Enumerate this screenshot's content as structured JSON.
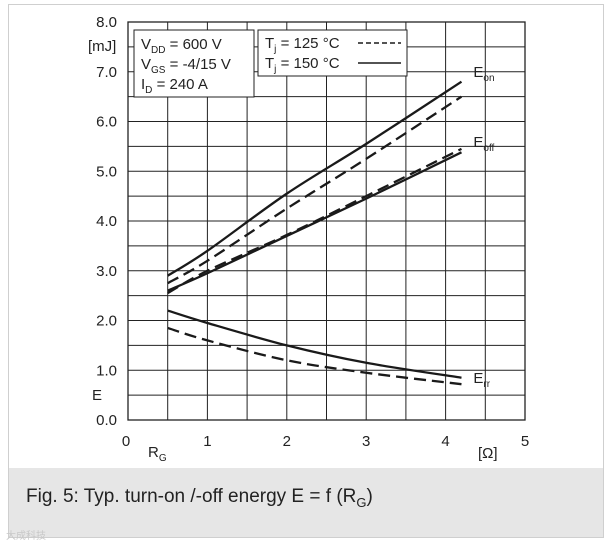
{
  "caption": {
    "text": "Fig. 5: Typ. turn-on /-off energy E = f (R",
    "sub": "G",
    "close": ")"
  },
  "watermark": "大成科技",
  "chart_data": {
    "type": "line",
    "xlim": [
      0,
      5
    ],
    "ylim": [
      0,
      8
    ],
    "x_ticks": [
      "0",
      "1",
      "2",
      "3",
      "4",
      "5"
    ],
    "y_ticks": [
      "0.0",
      "1.0",
      "2.0",
      "3.0",
      "4.0",
      "5.0",
      "6.0",
      "7.0",
      "8.0"
    ],
    "x_unit": "[Ω]",
    "y_unit": "[mJ]",
    "x_var": {
      "main": "R",
      "sub": "G"
    },
    "y_var": "E",
    "grid": true,
    "conditions": [
      {
        "main": "V",
        "sub": "DD",
        "rest": " = 600 V"
      },
      {
        "main": "V",
        "sub": "GS",
        "rest": " = -4/15 V"
      },
      {
        "main": "I",
        "sub": "D",
        "rest": "  = 240 A"
      }
    ],
    "legend": [
      {
        "main": "T",
        "sub": "j",
        "rest": " = 125 °C",
        "style": "dashed"
      },
      {
        "main": "T",
        "sub": "j",
        "rest": " = 150 °C",
        "style": "solid"
      }
    ],
    "series": [
      {
        "curve": "Eon",
        "style": "solid",
        "x": [
          0.5,
          1.0,
          2.0,
          3.0,
          4.2
        ],
        "y": [
          2.9,
          3.4,
          4.55,
          5.55,
          6.8
        ]
      },
      {
        "curve": "Eon",
        "style": "dashed",
        "x": [
          0.5,
          1.0,
          2.0,
          3.0,
          4.2
        ],
        "y": [
          2.75,
          3.2,
          4.25,
          5.25,
          6.5
        ]
      },
      {
        "curve": "Eoff",
        "style": "solid",
        "x": [
          0.5,
          1.0,
          2.0,
          3.0,
          4.2
        ],
        "y": [
          2.6,
          2.95,
          3.7,
          4.45,
          5.38
        ]
      },
      {
        "curve": "Eoff",
        "style": "dashed",
        "x": [
          0.5,
          1.0,
          2.0,
          3.0,
          4.2
        ],
        "y": [
          2.55,
          3.0,
          3.72,
          4.5,
          5.45
        ]
      },
      {
        "curve": "Err",
        "style": "solid",
        "x": [
          0.5,
          1.0,
          2.0,
          3.0,
          4.2
        ],
        "y": [
          2.2,
          1.95,
          1.5,
          1.15,
          0.85
        ]
      },
      {
        "curve": "Err",
        "style": "dashed",
        "x": [
          0.5,
          1.0,
          2.0,
          3.0,
          4.2
        ],
        "y": [
          1.85,
          1.6,
          1.2,
          0.95,
          0.72
        ]
      }
    ],
    "curve_labels": [
      {
        "main": "E",
        "sub": "on",
        "x": 4.35,
        "y": 6.85
      },
      {
        "main": "E",
        "sub": "off",
        "x": 4.35,
        "y": 5.45
      },
      {
        "main": "E",
        "sub": "rr",
        "x": 4.35,
        "y": 0.7
      }
    ],
    "colors": {
      "line": "#1a1a1a",
      "grid": "#222222"
    }
  }
}
